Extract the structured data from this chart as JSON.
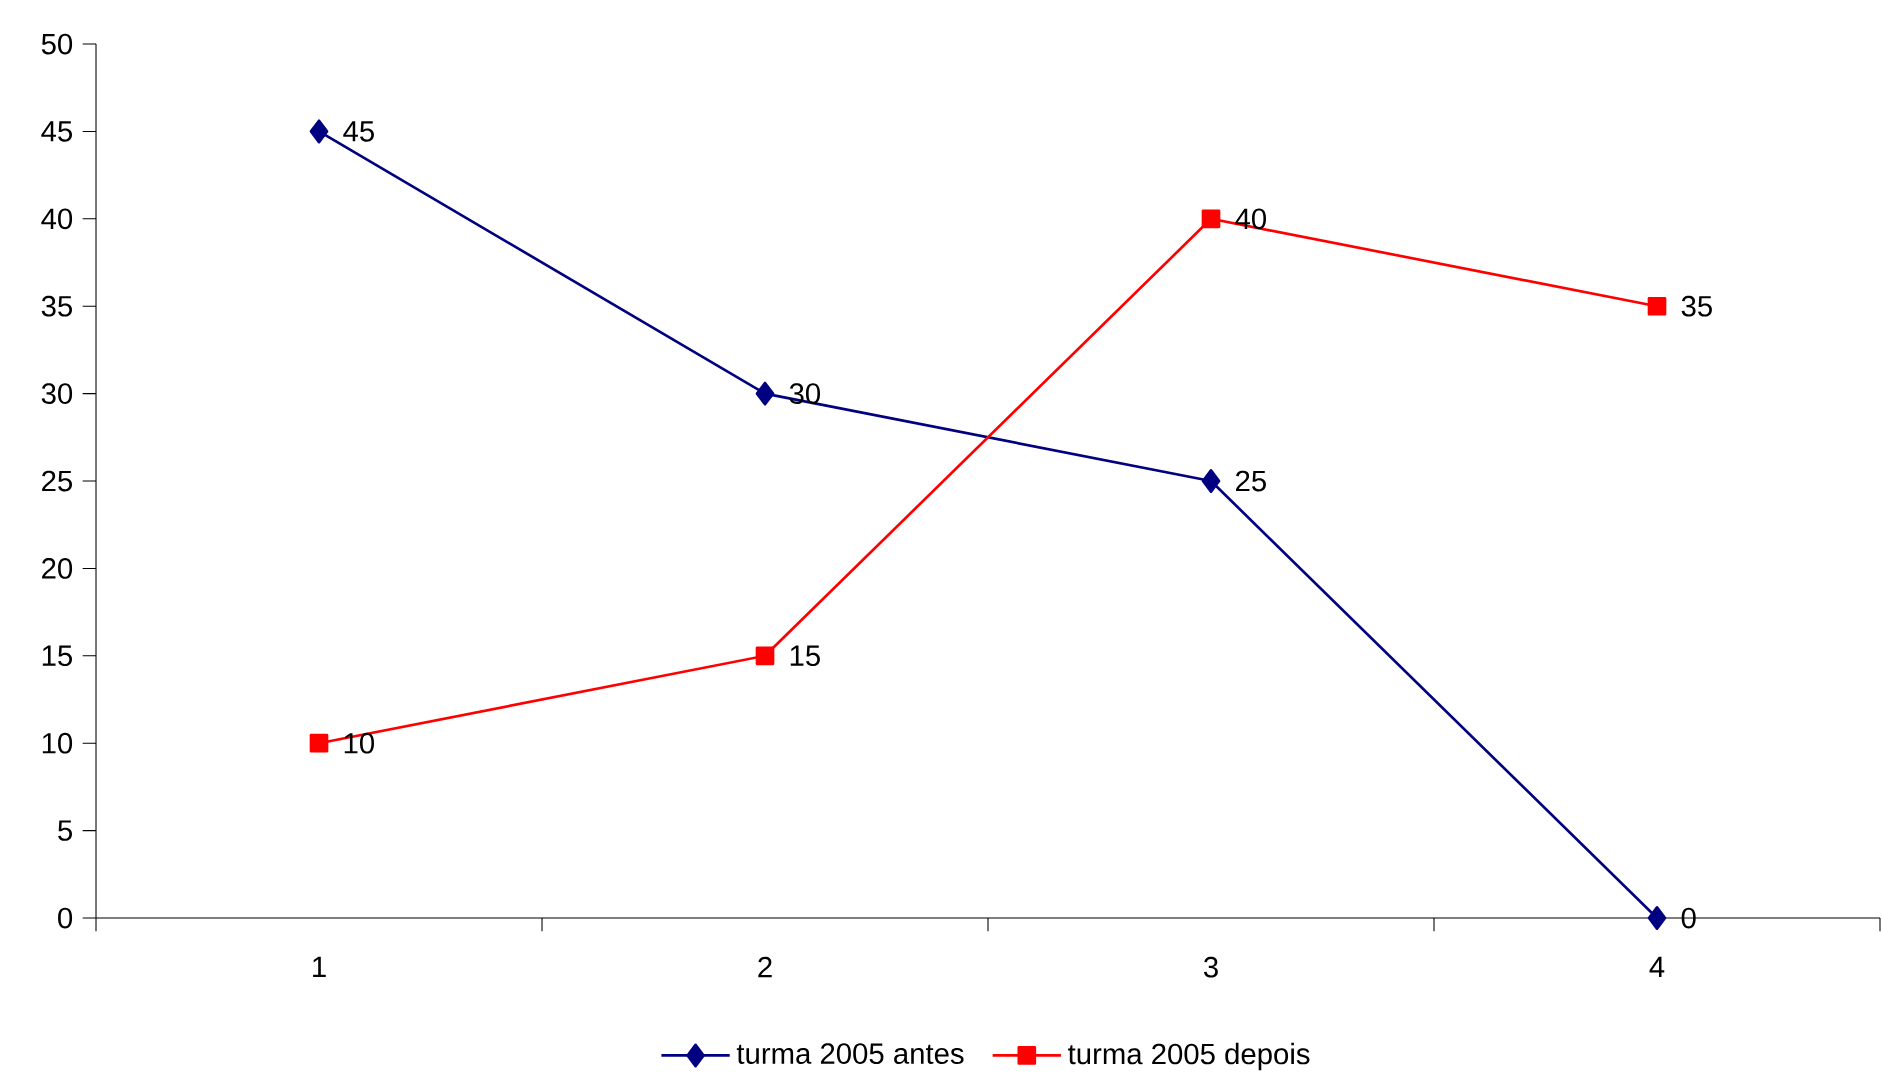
{
  "chart_data": {
    "type": "line",
    "categories": [
      "1",
      "2",
      "3",
      "4"
    ],
    "series": [
      {
        "name": "turma 2005 antes",
        "color": "#000080",
        "marker": "diamond",
        "values": [
          45,
          30,
          25,
          0
        ]
      },
      {
        "name": "turma 2005 depois",
        "color": "#ff0000",
        "marker": "square",
        "values": [
          10,
          15,
          40,
          35
        ]
      }
    ],
    "ylim": [
      0,
      50
    ],
    "yticks": [
      0,
      5,
      10,
      15,
      20,
      25,
      30,
      35,
      40,
      45,
      50
    ],
    "grid": false,
    "legend": "bottom",
    "data_labels": true,
    "line_style": "solid"
  }
}
